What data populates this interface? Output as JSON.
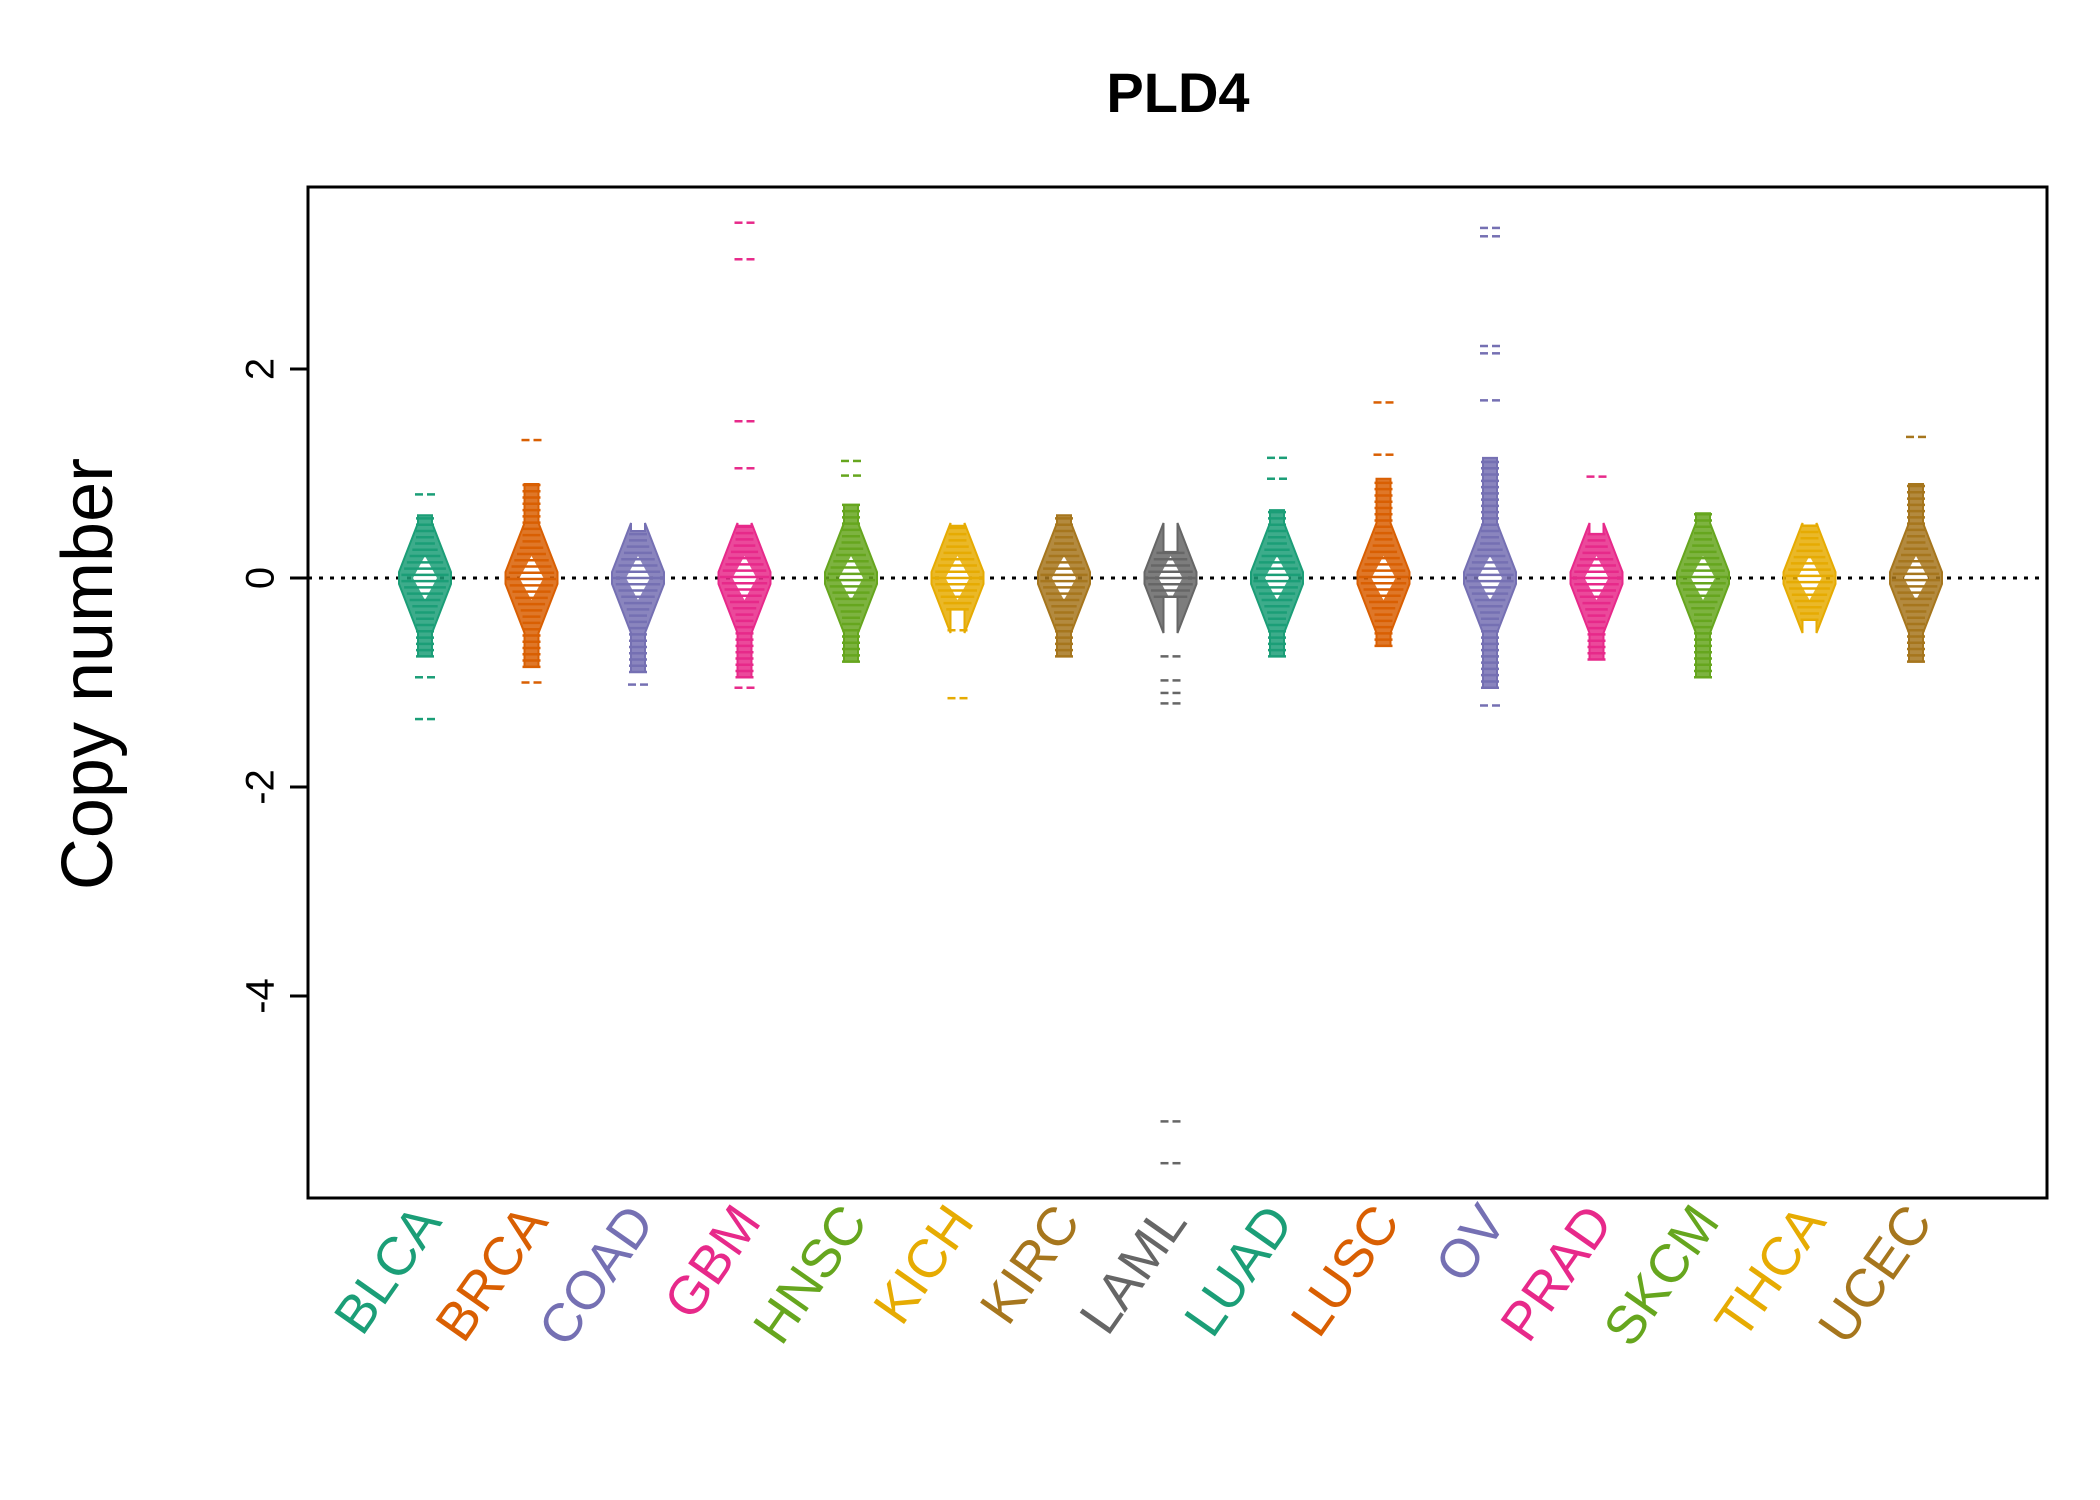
{
  "chart_data": {
    "type": "beanplot",
    "title": "PLD4",
    "xlabel": "",
    "ylabel": "Copy number",
    "ylim": [
      -5.8,
      3.8
    ],
    "yticks": [
      2,
      0,
      -2,
      -4
    ],
    "reference_line": 0,
    "categories": [
      {
        "name": "BLCA",
        "color": "#1b9e77",
        "min": -0.75,
        "max": 0.6,
        "low_out": [
          -0.95,
          -1.35
        ],
        "high_out": [
          0.8
        ]
      },
      {
        "name": "BRCA",
        "color": "#d95f02",
        "min": -0.85,
        "max": 0.9,
        "low_out": [
          -1.0
        ],
        "high_out": [
          1.32
        ]
      },
      {
        "name": "COAD",
        "color": "#7570b3",
        "min": -0.9,
        "max": 0.45,
        "low_out": [
          -1.02
        ],
        "high_out": []
      },
      {
        "name": "GBM",
        "color": "#e7298a",
        "min": -0.95,
        "max": 0.5,
        "low_out": [
          -1.05
        ],
        "high_out": [
          1.05,
          1.5,
          3.05,
          3.4
        ]
      },
      {
        "name": "HNSC",
        "color": "#66a61e",
        "min": -0.8,
        "max": 0.7,
        "low_out": [],
        "high_out": [
          0.98,
          1.12
        ]
      },
      {
        "name": "KICH",
        "color": "#e6ab02",
        "min": -0.3,
        "max": 0.5,
        "low_out": [
          -0.5,
          -1.15
        ],
        "high_out": []
      },
      {
        "name": "KIRC",
        "color": "#a6761d",
        "min": -0.75,
        "max": 0.6,
        "low_out": [],
        "high_out": []
      },
      {
        "name": "LAML",
        "color": "#666666",
        "min": -0.18,
        "max": 0.25,
        "low_out": [
          -0.75,
          -0.98,
          -1.1,
          -1.2,
          -5.2,
          -5.6
        ],
        "high_out": []
      },
      {
        "name": "LUAD",
        "color": "#1b9e77",
        "min": -0.75,
        "max": 0.65,
        "low_out": [],
        "high_out": [
          0.95,
          1.15
        ]
      },
      {
        "name": "LUSC",
        "color": "#d95f02",
        "min": -0.65,
        "max": 0.95,
        "low_out": [],
        "high_out": [
          1.18,
          1.68
        ]
      },
      {
        "name": "OV",
        "color": "#7570b3",
        "min": -1.05,
        "max": 1.15,
        "low_out": [
          -1.22
        ],
        "high_out": [
          1.7,
          2.15,
          2.22,
          3.27,
          3.35
        ]
      },
      {
        "name": "PRAD",
        "color": "#e7298a",
        "min": -0.78,
        "max": 0.42,
        "low_out": [],
        "high_out": [
          0.97
        ]
      },
      {
        "name": "SKCM",
        "color": "#66a61e",
        "min": -0.95,
        "max": 0.62,
        "low_out": [],
        "high_out": []
      },
      {
        "name": "THCA",
        "color": "#e6ab02",
        "min": -0.4,
        "max": 0.5,
        "low_out": [],
        "high_out": []
      },
      {
        "name": "UCEC",
        "color": "#a6761d",
        "min": -0.8,
        "max": 0.9,
        "low_out": [],
        "high_out": [
          1.35
        ]
      }
    ]
  }
}
